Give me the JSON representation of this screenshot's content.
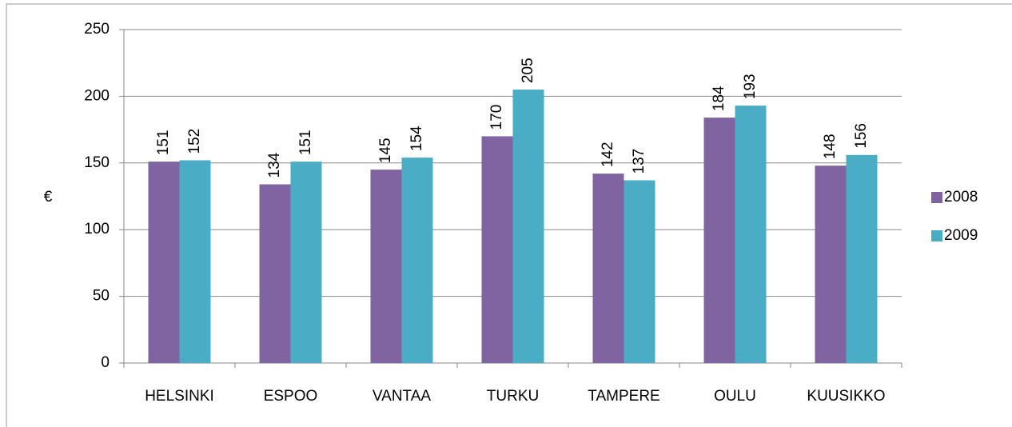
{
  "chart_data": {
    "type": "bar",
    "y_label": "€",
    "categories": [
      "HELSINKI",
      "ESPOO",
      "VANTAA",
      "TURKU",
      "TAMPERE",
      "OULU",
      "KUUSIKKO"
    ],
    "series": [
      {
        "name": "2008",
        "color": "#8064a2",
        "values": [
          151,
          134,
          145,
          170,
          142,
          184,
          148
        ]
      },
      {
        "name": "2009",
        "color": "#4bacc6",
        "values": [
          152,
          151,
          154,
          205,
          137,
          193,
          156
        ]
      }
    ],
    "ylim": [
      0,
      250
    ],
    "yticks": [
      0,
      50,
      100,
      150,
      200,
      250
    ],
    "grid": true,
    "legend": "right"
  }
}
